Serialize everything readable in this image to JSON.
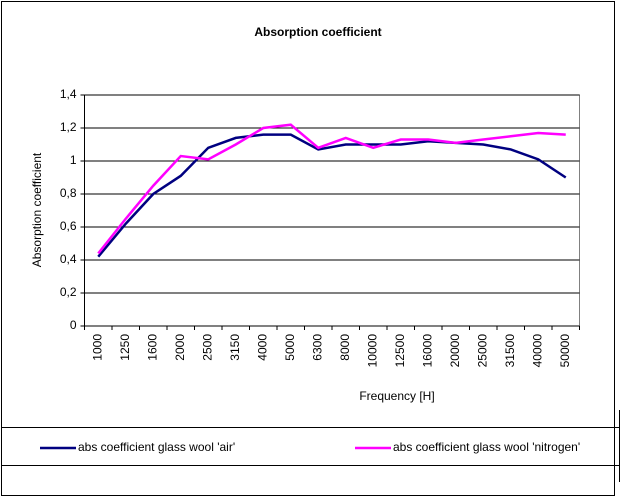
{
  "chart_data": {
    "type": "line",
    "title": "Absorption coefficient",
    "x_label": "Frequency [H]",
    "y_label": "Absorption coefficient",
    "categories": [
      "1000",
      "1250",
      "1600",
      "2000",
      "2500",
      "3150",
      "4000",
      "5000",
      "6300",
      "8000",
      "10000",
      "12500",
      "16000",
      "20000",
      "25000",
      "31500",
      "40000",
      "50000"
    ],
    "series": [
      {
        "name": "abs coefficient glass wool 'air'",
        "color": "#000080",
        "values": [
          0.42,
          0.62,
          0.8,
          0.91,
          1.08,
          1.14,
          1.16,
          1.16,
          1.07,
          1.1,
          1.1,
          1.1,
          1.12,
          1.11,
          1.1,
          1.07,
          1.01,
          0.9
        ]
      },
      {
        "name": "abs coefficient glass wool 'nitrogen'",
        "color": "#ff00ff",
        "values": [
          0.44,
          0.65,
          0.85,
          1.03,
          1.01,
          1.1,
          1.2,
          1.22,
          1.08,
          1.14,
          1.08,
          1.13,
          1.13,
          1.11,
          1.13,
          1.15,
          1.17,
          1.16
        ]
      }
    ],
    "ylim": [
      0,
      1.4
    ],
    "yticks": [
      0,
      {
        "value": 0.2,
        "label": "0,2"
      },
      {
        "value": 0.4,
        "label": "0,4"
      },
      {
        "value": 0.6,
        "label": "0,6"
      },
      {
        "value": 0.8,
        "label": "0,8"
      },
      1,
      {
        "value": 1.2,
        "label": "1,2"
      },
      {
        "value": 1.4,
        "label": "1,4"
      }
    ],
    "grid": true,
    "legend": "bottom"
  }
}
